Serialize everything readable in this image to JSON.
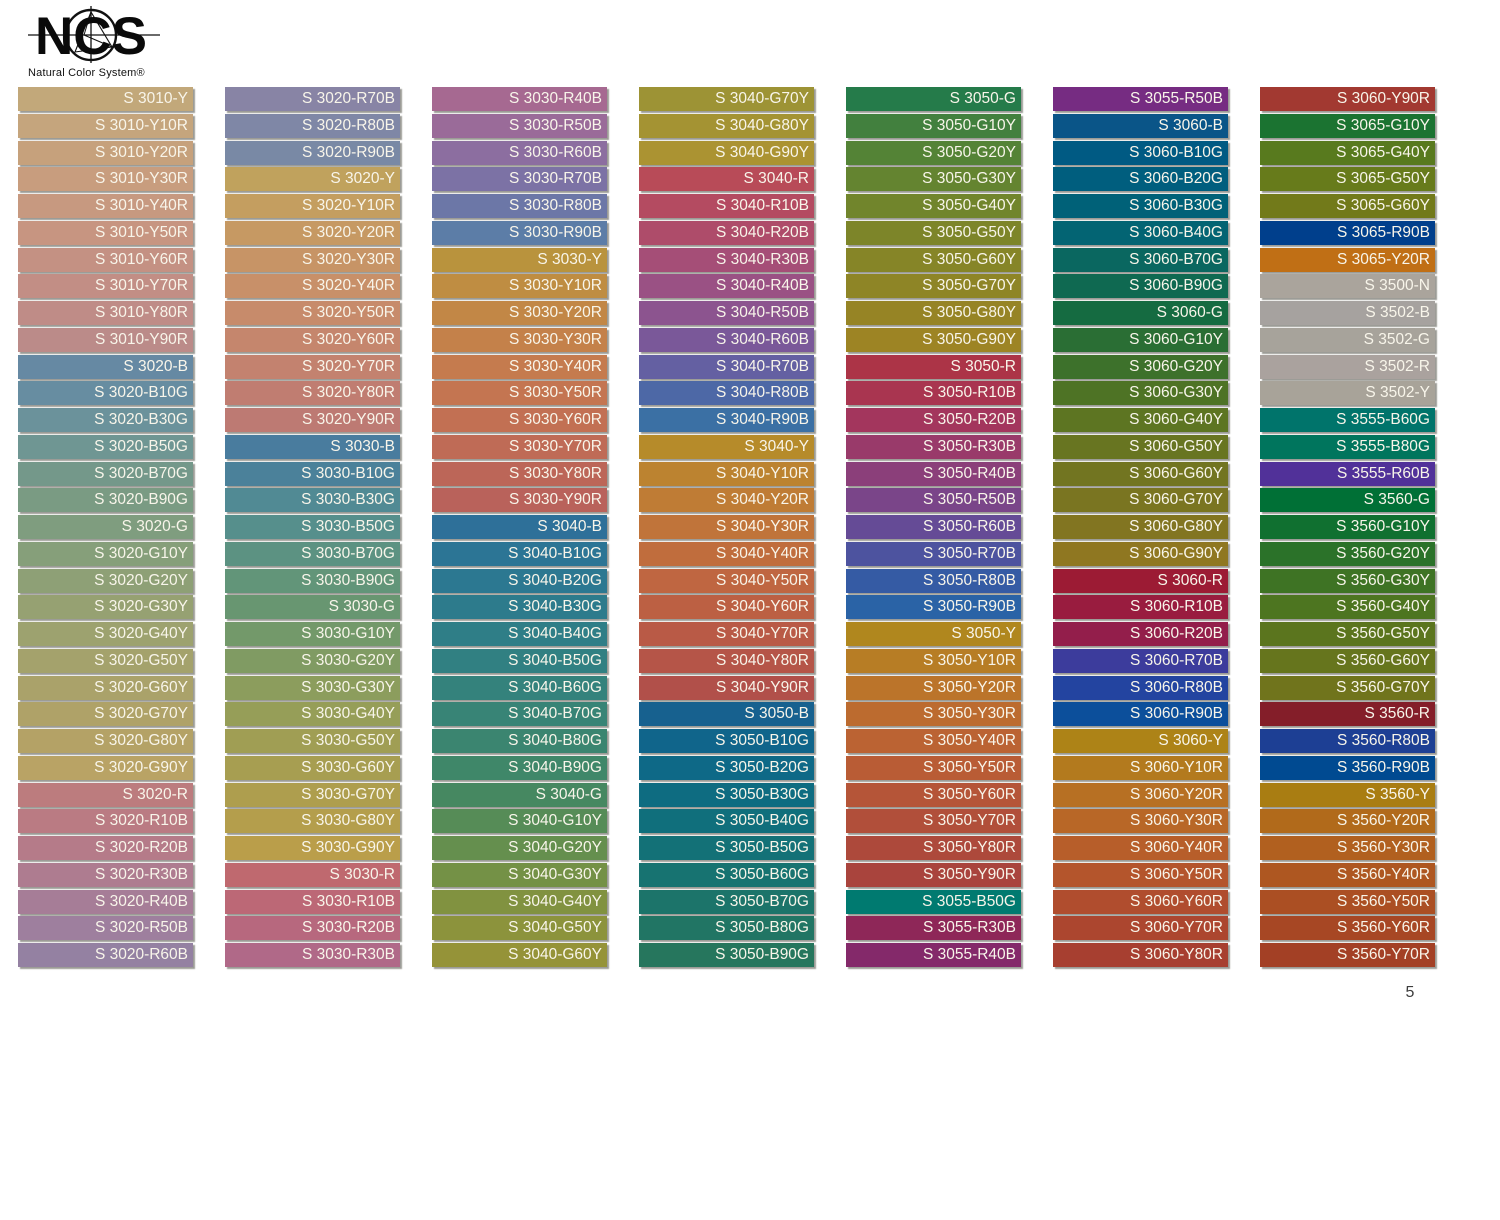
{
  "logo": {
    "letters": "NCS",
    "subtitle": "Natural Color System®"
  },
  "page_number": "5",
  "columns": [
    {
      "swatches": [
        [
          "S 3010-Y",
          "#c2a87a"
        ],
        [
          "S 3010-Y10R",
          "#c5a57d"
        ],
        [
          "S 3010-Y20R",
          "#c6a17c"
        ],
        [
          "S 3010-Y30R",
          "#c89d7e"
        ],
        [
          "S 3010-Y40R",
          "#c79980"
        ],
        [
          "S 3010-Y50R",
          "#c79581"
        ],
        [
          "S 3010-Y60R",
          "#c49183"
        ],
        [
          "S 3010-Y70R",
          "#c28e85"
        ],
        [
          "S 3010-Y80R",
          "#bf8c87"
        ],
        [
          "S 3010-Y90R",
          "#bb8b89"
        ],
        [
          "S 3020-B",
          "#6689a3"
        ],
        [
          "S 3020-B10G",
          "#678da1"
        ],
        [
          "S 3020-B30G",
          "#6b929b"
        ],
        [
          "S 3020-B50G",
          "#6f9693"
        ],
        [
          "S 3020-B70G",
          "#74988a"
        ],
        [
          "S 3020-B90G",
          "#7a9b83"
        ],
        [
          "S 3020-G",
          "#7f9d7f"
        ],
        [
          "S 3020-G10Y",
          "#869f7a"
        ],
        [
          "S 3020-G20Y",
          "#8ea076"
        ],
        [
          "S 3020-G30Y",
          "#96a172"
        ],
        [
          "S 3020-G40Y",
          "#9da26f"
        ],
        [
          "S 3020-G50Y",
          "#a4a26c"
        ],
        [
          "S 3020-G60Y",
          "#aaa26a"
        ],
        [
          "S 3020-G70Y",
          "#afa268"
        ],
        [
          "S 3020-G80Y",
          "#b4a266"
        ],
        [
          "S 3020-G90Y",
          "#b9a365"
        ],
        [
          "S 3020-R",
          "#bc7c7e"
        ],
        [
          "S 3020-R10B",
          "#ba7b83"
        ],
        [
          "S 3020-R20B",
          "#b57b89"
        ],
        [
          "S 3020-R30B",
          "#ae7c90"
        ],
        [
          "S 3020-R40B",
          "#a67d97"
        ],
        [
          "S 3020-R50B",
          "#9e7f9e"
        ],
        [
          "S 3020-R60B",
          "#9481a2"
        ]
      ]
    },
    {
      "swatches": [
        [
          "S 3020-R70B",
          "#8884a5"
        ],
        [
          "S 3020-R80B",
          "#7f87a6"
        ],
        [
          "S 3020-R90B",
          "#7989a5"
        ],
        [
          "S 3020-Y",
          "#c0a25d"
        ],
        [
          "S 3020-Y10R",
          "#c49e60"
        ],
        [
          "S 3020-Y20R",
          "#c69963"
        ],
        [
          "S 3020-Y30R",
          "#c79466"
        ],
        [
          "S 3020-Y40R",
          "#c89069"
        ],
        [
          "S 3020-Y50R",
          "#c78b6b"
        ],
        [
          "S 3020-Y60R",
          "#c5866d"
        ],
        [
          "S 3020-Y70R",
          "#c3826f"
        ],
        [
          "S 3020-Y80R",
          "#c07d71"
        ],
        [
          "S 3020-Y90R",
          "#bd7a73"
        ],
        [
          "S 3030-B",
          "#497c9e"
        ],
        [
          "S 3030-B10G",
          "#4b819a"
        ],
        [
          "S 3030-B30G",
          "#518a94"
        ],
        [
          "S 3030-B50G",
          "#568f8c"
        ],
        [
          "S 3030-B70G",
          "#5c9282"
        ],
        [
          "S 3030-B90G",
          "#629579"
        ],
        [
          "S 3030-G",
          "#689671"
        ],
        [
          "S 3030-G10Y",
          "#73996a"
        ],
        [
          "S 3030-G20Y",
          "#809b63"
        ],
        [
          "S 3030-G30Y",
          "#8c9d5d"
        ],
        [
          "S 3030-G40Y",
          "#969e58"
        ],
        [
          "S 3030-G50Y",
          "#a09e54"
        ],
        [
          "S 3030-G60Y",
          "#a79e51"
        ],
        [
          "S 3030-G70Y",
          "#ae9e4e"
        ],
        [
          "S 3030-G80Y",
          "#b49e4c"
        ],
        [
          "S 3030-G90Y",
          "#ba9e4a"
        ],
        [
          "S 3030-R",
          "#bf696f"
        ],
        [
          "S 3030-R10B",
          "#bc6876"
        ],
        [
          "S 3030-R20B",
          "#b7687e"
        ],
        [
          "S 3030-R30B",
          "#b06988"
        ]
      ]
    },
    {
      "swatches": [
        [
          "S 3030-R40B",
          "#a66991"
        ],
        [
          "S 3030-R50B",
          "#9a6b99"
        ],
        [
          "S 3030-R60B",
          "#8c6ea0"
        ],
        [
          "S 3030-R70B",
          "#7c72a5"
        ],
        [
          "S 3030-R80B",
          "#6c77a7"
        ],
        [
          "S 3030-R90B",
          "#5c7da7"
        ],
        [
          "S 3030-Y",
          "#b9933d"
        ],
        [
          "S 3030-Y10R",
          "#bf8d42"
        ],
        [
          "S 3030-Y20R",
          "#c28746"
        ],
        [
          "S 3030-Y30R",
          "#c4814a"
        ],
        [
          "S 3030-Y40R",
          "#c57b4e"
        ],
        [
          "S 3030-Y50R",
          "#c47551"
        ],
        [
          "S 3030-Y60R",
          "#c27053"
        ],
        [
          "S 3030-Y70R",
          "#bf6b56"
        ],
        [
          "S 3030-Y80R",
          "#bc6658"
        ],
        [
          "S 3030-Y90R",
          "#b9625b"
        ],
        [
          "S 3040-B",
          "#2e7099"
        ],
        [
          "S 3040-B10G",
          "#2c7595"
        ],
        [
          "S 3040-B20G",
          "#2c7891"
        ],
        [
          "S 3040-B30G",
          "#2d7b8c"
        ],
        [
          "S 3040-B40G",
          "#2f7e87"
        ],
        [
          "S 3040-B50G",
          "#318082"
        ],
        [
          "S 3040-B60G",
          "#34827c"
        ],
        [
          "S 3040-B70G",
          "#388476"
        ],
        [
          "S 3040-B80G",
          "#3b8570"
        ],
        [
          "S 3040-B90G",
          "#3f8769"
        ],
        [
          "S 3040-G",
          "#468861"
        ],
        [
          "S 3040-G10Y",
          "#568c57"
        ],
        [
          "S 3040-G20Y",
          "#658f4e"
        ],
        [
          "S 3040-G30Y",
          "#749146"
        ],
        [
          "S 3040-G40Y",
          "#819240"
        ],
        [
          "S 3040-G50Y",
          "#8c933c"
        ],
        [
          "S 3040-G60Y",
          "#959338"
        ]
      ]
    },
    {
      "swatches": [
        [
          "S 3040-G70Y",
          "#9d9335"
        ],
        [
          "S 3040-G80Y",
          "#a49333"
        ],
        [
          "S 3040-G90Y",
          "#ab9332"
        ],
        [
          "S 3040-R",
          "#b84b58"
        ],
        [
          "S 3040-R10B",
          "#b44b61"
        ],
        [
          "S 3040-R20B",
          "#ae4c6a"
        ],
        [
          "S 3040-R30B",
          "#a54e77"
        ],
        [
          "S 3040-R40B",
          "#9a5184"
        ],
        [
          "S 3040-R50B",
          "#8c548f"
        ],
        [
          "S 3040-R60B",
          "#7a5899"
        ],
        [
          "S 3040-R70B",
          "#6460a2"
        ],
        [
          "S 3040-R80B",
          "#4d68a6"
        ],
        [
          "S 3040-R90B",
          "#3b70a4"
        ],
        [
          "S 3040-Y",
          "#b68b2a"
        ],
        [
          "S 3040-Y10R",
          "#bc8330"
        ],
        [
          "S 3040-Y20R",
          "#bf7c35"
        ],
        [
          "S 3040-Y30R",
          "#c0743a"
        ],
        [
          "S 3040-Y40R",
          "#c06d3d"
        ],
        [
          "S 3040-Y50R",
          "#bf6641"
        ],
        [
          "S 3040-Y60R",
          "#bc6043"
        ],
        [
          "S 3040-Y70R",
          "#b95a46"
        ],
        [
          "S 3040-Y80R",
          "#b55548"
        ],
        [
          "S 3040-Y90R",
          "#b1504a"
        ],
        [
          "S 3050-B",
          "#17618f"
        ],
        [
          "S 3050-B10G",
          "#10658b"
        ],
        [
          "S 3050-B20G",
          "#0e6987"
        ],
        [
          "S 3050-B30G",
          "#0e6c81"
        ],
        [
          "S 3050-B40G",
          "#106f7c"
        ],
        [
          "S 3050-B50G",
          "#137177"
        ],
        [
          "S 3050-B60G",
          "#177371"
        ],
        [
          "S 3050-B70G",
          "#1c746a"
        ],
        [
          "S 3050-B80G",
          "#217564"
        ],
        [
          "S 3050-B90G",
          "#26765d"
        ]
      ]
    },
    {
      "swatches": [
        [
          "S 3050-G",
          "#257b4a"
        ],
        [
          "S 3050-G10Y",
          "#42803e"
        ],
        [
          "S 3050-G20Y",
          "#548336"
        ],
        [
          "S 3050-G30Y",
          "#648430"
        ],
        [
          "S 3050-G40Y",
          "#71852c"
        ],
        [
          "S 3050-G50Y",
          "#7d8529"
        ],
        [
          "S 3050-G60Y",
          "#868527"
        ],
        [
          "S 3050-G70Y",
          "#8e8526"
        ],
        [
          "S 3050-G80Y",
          "#968425"
        ],
        [
          "S 3050-G90Y",
          "#9d8424"
        ],
        [
          "S 3050-R",
          "#ac3447"
        ],
        [
          "S 3050-R10B",
          "#a93550"
        ],
        [
          "S 3050-R20B",
          "#a3365d"
        ],
        [
          "S 3050-R30B",
          "#993a6a"
        ],
        [
          "S 3050-R40B",
          "#8b3f7a"
        ],
        [
          "S 3050-R50B",
          "#7a4589"
        ],
        [
          "S 3050-R60B",
          "#654b96"
        ],
        [
          "S 3050-R70B",
          "#4d539f"
        ],
        [
          "S 3050-R80B",
          "#355ba4"
        ],
        [
          "S 3050-R90B",
          "#2a63a6"
        ],
        [
          "S 3050-Y",
          "#b0871e"
        ],
        [
          "S 3050-Y10R",
          "#b77d25"
        ],
        [
          "S 3050-Y20R",
          "#bb742a"
        ],
        [
          "S 3050-Y30R",
          "#bc6b2f"
        ],
        [
          "S 3050-Y40R",
          "#bb6333"
        ],
        [
          "S 3050-Y50R",
          "#b95c35"
        ],
        [
          "S 3050-Y60R",
          "#b55538"
        ],
        [
          "S 3050-Y70R",
          "#b14f3a"
        ],
        [
          "S 3050-Y80R",
          "#ad493b"
        ],
        [
          "S 3050-Y90R",
          "#a9443d"
        ],
        [
          "S 3055-B50G",
          "#007a70"
        ],
        [
          "S 3055-R30B",
          "#8e2758"
        ],
        [
          "S 3055-R40B",
          "#84296a"
        ]
      ]
    },
    {
      "swatches": [
        [
          "S 3055-R50B",
          "#762c82"
        ],
        [
          "S 3060-B",
          "#0a5588"
        ],
        [
          "S 3060-B10G",
          "#005a83"
        ],
        [
          "S 3060-B20G",
          "#005e7e"
        ],
        [
          "S 3060-B30G",
          "#006178"
        ],
        [
          "S 3060-B40G",
          "#036473"
        ],
        [
          "S 3060-B70G",
          "#0a6760"
        ],
        [
          "S 3060-B90G",
          "#0f6951"
        ],
        [
          "S 3060-G",
          "#156b41"
        ],
        [
          "S 3060-G10Y",
          "#2a6e34"
        ],
        [
          "S 3060-G20Y",
          "#3d712b"
        ],
        [
          "S 3060-G30Y",
          "#4e7325"
        ],
        [
          "S 3060-G40Y",
          "#5d7522"
        ],
        [
          "S 3060-G50Y",
          "#687521"
        ],
        [
          "S 3060-G60Y",
          "#727521"
        ],
        [
          "S 3060-G70Y",
          "#7a7521"
        ],
        [
          "S 3060-G80Y",
          "#827521"
        ],
        [
          "S 3060-G90Y",
          "#8f7721"
        ],
        [
          "S 3060-R",
          "#9c1b34"
        ],
        [
          "S 3060-R10B",
          "#991c3f"
        ],
        [
          "S 3060-R20B",
          "#931e4b"
        ],
        [
          "S 3060-R70B",
          "#3c3c9c"
        ],
        [
          "S 3060-R80B",
          "#2344a0"
        ],
        [
          "S 3060-R90B",
          "#0c4f9b"
        ],
        [
          "S 3060-Y",
          "#ad8317"
        ],
        [
          "S 3060-Y10R",
          "#b37a1e"
        ],
        [
          "S 3060-Y20R",
          "#b77023"
        ],
        [
          "S 3060-Y30R",
          "#b86727"
        ],
        [
          "S 3060-Y40R",
          "#b75e2a"
        ],
        [
          "S 3060-Y50R",
          "#b4552c"
        ],
        [
          "S 3060-Y60R",
          "#b04d2e"
        ],
        [
          "S 3060-Y70R",
          "#ac462f"
        ],
        [
          "S 3060-Y80R",
          "#a73f30"
        ]
      ]
    },
    {
      "swatches": [
        [
          "S 3060-Y90R",
          "#a23931"
        ],
        [
          "S 3065-G10Y",
          "#1b7331"
        ],
        [
          "S 3065-G40Y",
          "#587a1e"
        ],
        [
          "S 3065-G50Y",
          "#677b1b"
        ],
        [
          "S 3065-G60Y",
          "#727a1a"
        ],
        [
          "S 3065-R90B",
          "#003f8c"
        ],
        [
          "S 3065-Y20R",
          "#c06f15"
        ],
        [
          "S 3500-N",
          "#aaa49c"
        ],
        [
          "S 3502-B",
          "#a6a29f"
        ],
        [
          "S 3502-G",
          "#a7a39b"
        ],
        [
          "S 3502-R",
          "#aaa29e"
        ],
        [
          "S 3502-Y",
          "#a8a399"
        ],
        [
          "S 3555-B60G",
          "#00746b"
        ],
        [
          "S 3555-B80G",
          "#00755d"
        ],
        [
          "S 3555-R60B",
          "#513199"
        ],
        [
          "S 3560-G",
          "#007036"
        ],
        [
          "S 3560-G10Y",
          "#107030"
        ],
        [
          "S 3560-G20Y",
          "#2b7229"
        ],
        [
          "S 3560-G30Y",
          "#3e7324"
        ],
        [
          "S 3560-G40Y",
          "#4d7520"
        ],
        [
          "S 3560-G50Y",
          "#5b751e"
        ],
        [
          "S 3560-G60Y",
          "#66751d"
        ],
        [
          "S 3560-G70Y",
          "#70741c"
        ],
        [
          "S 3560-R",
          "#841e29"
        ],
        [
          "S 3560-R80B",
          "#1d3f94"
        ],
        [
          "S 3560-R90B",
          "#004a91"
        ],
        [
          "S 3560-Y",
          "#a97d12"
        ],
        [
          "S 3560-Y20R",
          "#b16a1b"
        ],
        [
          "S 3560-Y30R",
          "#b1601f"
        ],
        [
          "S 3560-Y40R",
          "#ae5721"
        ],
        [
          "S 3560-Y50R",
          "#ab4f23"
        ],
        [
          "S 3560-Y60R",
          "#a74724"
        ],
        [
          "S 3560-Y70R",
          "#a34025"
        ]
      ]
    }
  ]
}
